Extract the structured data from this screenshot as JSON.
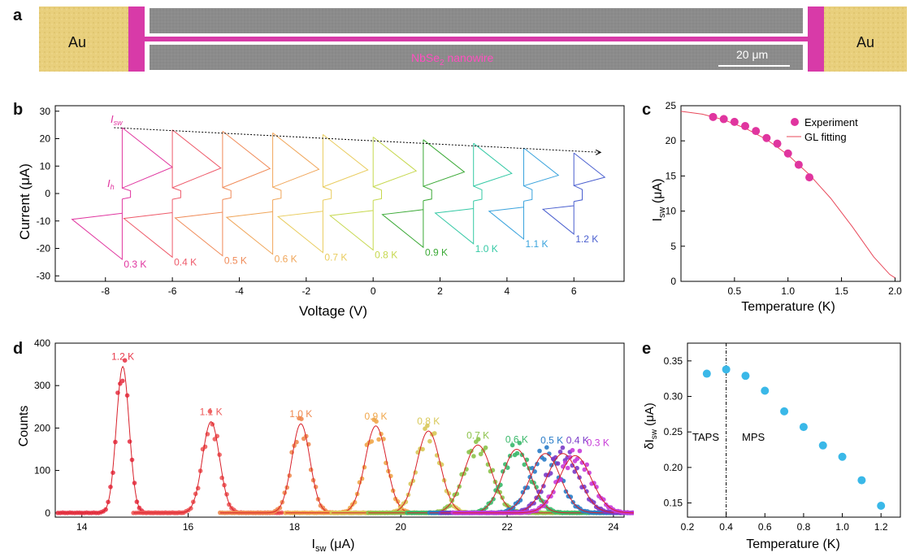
{
  "panel_letters": {
    "a": "a",
    "b": "b",
    "c": "c",
    "d": "d",
    "e": "e"
  },
  "panel_a": {
    "left_pad": "Au",
    "right_pad": "Au",
    "wire_label_main": "NbSe",
    "wire_label_sub": "2",
    "wire_label_rest": " nanowire",
    "scale_bar": "20 μm",
    "colors": {
      "gold": "#e8cf7c",
      "magenta": "#d83aa8",
      "sem": "#8a8a8a"
    }
  },
  "panel_b": {
    "xlabel": "Voltage (V)",
    "ylabel": "Current (μA)",
    "isw_label_main": "I",
    "isw_label_sub": "sw",
    "ih_label_main": "I",
    "ih_label_sub": "h",
    "xticks": [
      "-8",
      "-6",
      "-4",
      "-2",
      "0",
      "2",
      "4",
      "6"
    ],
    "yticks": [
      "30",
      "20",
      "10",
      "0",
      "-10",
      "-20",
      "-30"
    ],
    "curves": [
      {
        "label": "0.3 K",
        "color": "#e0359f"
      },
      {
        "label": "0.4 K",
        "color": "#ee5a6a"
      },
      {
        "label": "0.5 K",
        "color": "#f08a57"
      },
      {
        "label": "0.6 K",
        "color": "#f0a65a"
      },
      {
        "label": "0.7 K",
        "color": "#e9cc5e"
      },
      {
        "label": "0.8 K",
        "color": "#c6d84e"
      },
      {
        "label": "0.9 K",
        "color": "#3aa935"
      },
      {
        "label": "1.0 K",
        "color": "#35c9a5"
      },
      {
        "label": "1.1 K",
        "color": "#3aa3dd"
      },
      {
        "label": "1.2 K",
        "color": "#4a5fcf"
      }
    ]
  },
  "panel_c": {
    "xlabel": "Temperature (K)",
    "ylabel_main": "I",
    "ylabel_sub": "sw",
    "ylabel_unit": " (μA)",
    "legend_experiment": "Experiment",
    "legend_fit": "GL fitting",
    "xticks": [
      "0.5",
      "1.0",
      "1.5",
      "2.0"
    ],
    "yticks": [
      "0",
      "5",
      "10",
      "15",
      "20",
      "25"
    ]
  },
  "panel_d": {
    "xlabel_main": "I",
    "xlabel_sub": "sw",
    "xlabel_unit": " (μA)",
    "ylabel": "Counts",
    "xticks": [
      "14",
      "16",
      "18",
      "20",
      "22",
      "24"
    ],
    "yticks": [
      "0",
      "100",
      "200",
      "300",
      "400"
    ],
    "peaks": [
      {
        "label": "1.2 K",
        "color": "#e8384a"
      },
      {
        "label": "1.1 K",
        "color": "#ee5a5a"
      },
      {
        "label": "1.0 K",
        "color": "#f08a50"
      },
      {
        "label": "0.9 K",
        "color": "#f0a64a"
      },
      {
        "label": "0.8 K",
        "color": "#d8c858"
      },
      {
        "label": "0.7 K",
        "color": "#8cc24a"
      },
      {
        "label": "0.6 K",
        "color": "#3ab86a"
      },
      {
        "label": "0.5 K",
        "color": "#2a7cc8"
      },
      {
        "label": "0.4 K",
        "color": "#7a3ac8"
      },
      {
        "label": "0.3 K",
        "color": "#c83ad8"
      }
    ]
  },
  "panel_e": {
    "xlabel": "Temperature (K)",
    "ylabel_main": "δI",
    "ylabel_sub": "sw",
    "ylabel_unit": " (μA)",
    "label_taps": "TAPS",
    "label_mps": "MPS",
    "xticks": [
      "0.2",
      "0.4",
      "0.6",
      "0.8",
      "1.0",
      "1.2"
    ],
    "yticks": [
      "0.35",
      "0.30",
      "0.25",
      "0.20",
      "0.15"
    ]
  },
  "chart_data": [
    {
      "type": "line",
      "title": "",
      "xlabel": "Voltage (V)",
      "ylabel": "Current (μA)",
      "xlim": [
        -9.5,
        7.5
      ],
      "ylim": [
        -32,
        32
      ],
      "series": [
        {
          "name": "0.3 K",
          "switching_current": 24.0
        },
        {
          "name": "0.4 K",
          "switching_current": 23.2
        },
        {
          "name": "0.5 K",
          "switching_current": 22.7
        },
        {
          "name": "0.6 K",
          "switching_current": 22.1
        },
        {
          "name": "0.7 K",
          "switching_current": 21.5
        },
        {
          "name": "0.8 K",
          "switching_current": 20.6
        },
        {
          "name": "0.9 K",
          "switching_current": 19.6
        },
        {
          "name": "1.0 K",
          "switching_current": 18.3
        },
        {
          "name": "1.1 K",
          "switching_current": 16.6
        },
        {
          "name": "1.2 K",
          "switching_current": 14.8
        }
      ]
    },
    {
      "type": "scatter",
      "title": "",
      "xlabel": "Temperature (K)",
      "ylabel": "Isw (μA)",
      "xlim": [
        0,
        2.05
      ],
      "ylim": [
        0,
        25
      ],
      "series": [
        {
          "name": "Experiment",
          "x": [
            0.3,
            0.4,
            0.5,
            0.6,
            0.7,
            0.8,
            0.9,
            1.0,
            1.1,
            1.2
          ],
          "y": [
            23.4,
            23.1,
            22.7,
            22.1,
            21.4,
            20.4,
            19.6,
            18.2,
            16.6,
            14.8
          ]
        },
        {
          "name": "GL fitting",
          "x": [
            0.0,
            0.2,
            0.4,
            0.6,
            0.8,
            1.0,
            1.2,
            1.4,
            1.6,
            1.8,
            1.95,
            2.0
          ],
          "y": [
            24.2,
            23.8,
            23.0,
            21.8,
            20.2,
            18.0,
            15.2,
            11.8,
            7.8,
            3.5,
            1.0,
            0.5
          ]
        }
      ]
    },
    {
      "type": "line",
      "title": "",
      "xlabel": "Isw (μA)",
      "ylabel": "Counts",
      "xlim": [
        13.5,
        24.2
      ],
      "ylim": [
        -10,
        400
      ],
      "series": [
        {
          "name": "1.2 K",
          "center": 14.77,
          "peak": 345,
          "width": 0.12
        },
        {
          "name": "1.1 K",
          "center": 16.43,
          "peak": 215,
          "width": 0.16
        },
        {
          "name": "1.0 K",
          "center": 18.12,
          "peak": 210,
          "width": 0.17
        },
        {
          "name": "0.9 K",
          "center": 19.53,
          "peak": 205,
          "width": 0.2
        },
        {
          "name": "0.8 K",
          "center": 20.52,
          "peak": 193,
          "width": 0.22
        },
        {
          "name": "0.7 K",
          "center": 21.45,
          "peak": 160,
          "width": 0.26
        },
        {
          "name": "0.6 K",
          "center": 22.18,
          "peak": 150,
          "width": 0.26
        },
        {
          "name": "0.5 K",
          "center": 22.72,
          "peak": 140,
          "width": 0.28
        },
        {
          "name": "0.4 K",
          "center": 23.05,
          "peak": 140,
          "width": 0.3
        },
        {
          "name": "0.3 K",
          "center": 23.28,
          "peak": 135,
          "width": 0.3
        }
      ]
    },
    {
      "type": "scatter",
      "title": "",
      "xlabel": "Temperature (K)",
      "ylabel": "δIsw (μA)",
      "xlim": [
        0.2,
        1.3
      ],
      "ylim": [
        0.13,
        0.375
      ],
      "x": [
        0.3,
        0.4,
        0.5,
        0.6,
        0.7,
        0.8,
        0.9,
        1.0,
        1.1,
        1.2
      ],
      "y": [
        0.332,
        0.338,
        0.329,
        0.308,
        0.279,
        0.257,
        0.231,
        0.215,
        0.182,
        0.146
      ]
    }
  ]
}
